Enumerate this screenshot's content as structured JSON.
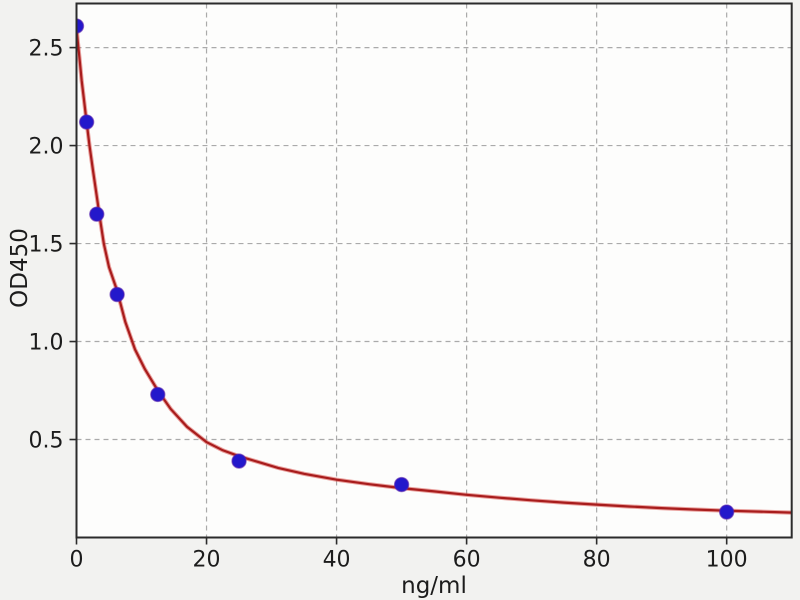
{
  "figure": {
    "colors": {
      "figure_bg": "#f2f2f0",
      "plot_bg": "#fdfdfc",
      "spine": "#2b2b2b",
      "grid": "#aaaaaa",
      "tick": "#2b2b2b",
      "tick_label": "#1c1c1c",
      "curve": "#a81c1c",
      "curve_halo": "#d9534f",
      "marker_fill": "#2318cb",
      "marker_edge": "#551fae"
    }
  },
  "chart_data": {
    "type": "scatter",
    "title": "",
    "xlabel": "ng/ml",
    "ylabel": "OD450",
    "xlim": [
      0,
      110
    ],
    "ylim": [
      0,
      2.725
    ],
    "grid": "dashed",
    "legend": "none",
    "x_ticks": [
      0,
      20,
      40,
      60,
      80,
      100
    ],
    "x_tick_labels": [
      "0",
      "20",
      "40",
      "60",
      "80",
      "100"
    ],
    "y_ticks": [
      0.5,
      1.0,
      1.5,
      2.0,
      2.5
    ],
    "y_tick_labels": [
      "0.5",
      "1.0",
      "1.5",
      "2.0",
      "2.5"
    ],
    "series": [
      {
        "name": "standard-points",
        "type": "scatter",
        "marker_radius": 7,
        "points": [
          [
            0,
            2.61
          ],
          [
            1.56,
            2.12
          ],
          [
            3.12,
            1.65
          ],
          [
            6.25,
            1.24
          ],
          [
            12.5,
            0.73
          ],
          [
            25,
            0.39
          ],
          [
            50,
            0.27
          ],
          [
            100,
            0.13
          ]
        ]
      },
      {
        "name": "4pl-fit-curve",
        "type": "line",
        "points": [
          [
            0,
            2.6
          ],
          [
            0.2,
            2.53
          ],
          [
            0.5,
            2.43
          ],
          [
            0.8,
            2.33
          ],
          [
            1.2,
            2.22
          ],
          [
            1.56,
            2.12
          ],
          [
            2,
            2.0
          ],
          [
            2.5,
            1.88
          ],
          [
            3.12,
            1.74
          ],
          [
            3.6,
            1.63
          ],
          [
            4.2,
            1.5
          ],
          [
            5,
            1.38
          ],
          [
            6.25,
            1.26
          ],
          [
            7.5,
            1.1
          ],
          [
            9,
            0.96
          ],
          [
            10.5,
            0.86
          ],
          [
            12.5,
            0.75
          ],
          [
            14.5,
            0.655
          ],
          [
            17,
            0.565
          ],
          [
            20,
            0.487
          ],
          [
            22.5,
            0.445
          ],
          [
            25,
            0.415
          ],
          [
            28,
            0.385
          ],
          [
            31,
            0.355
          ],
          [
            35,
            0.325
          ],
          [
            40,
            0.295
          ],
          [
            45,
            0.272
          ],
          [
            50,
            0.252
          ],
          [
            55,
            0.235
          ],
          [
            60,
            0.218
          ],
          [
            65,
            0.203
          ],
          [
            70,
            0.19
          ],
          [
            75,
            0.178
          ],
          [
            80,
            0.168
          ],
          [
            85,
            0.158
          ],
          [
            90,
            0.15
          ],
          [
            95,
            0.143
          ],
          [
            100,
            0.137
          ],
          [
            105,
            0.132
          ],
          [
            110,
            0.127
          ]
        ]
      }
    ]
  }
}
